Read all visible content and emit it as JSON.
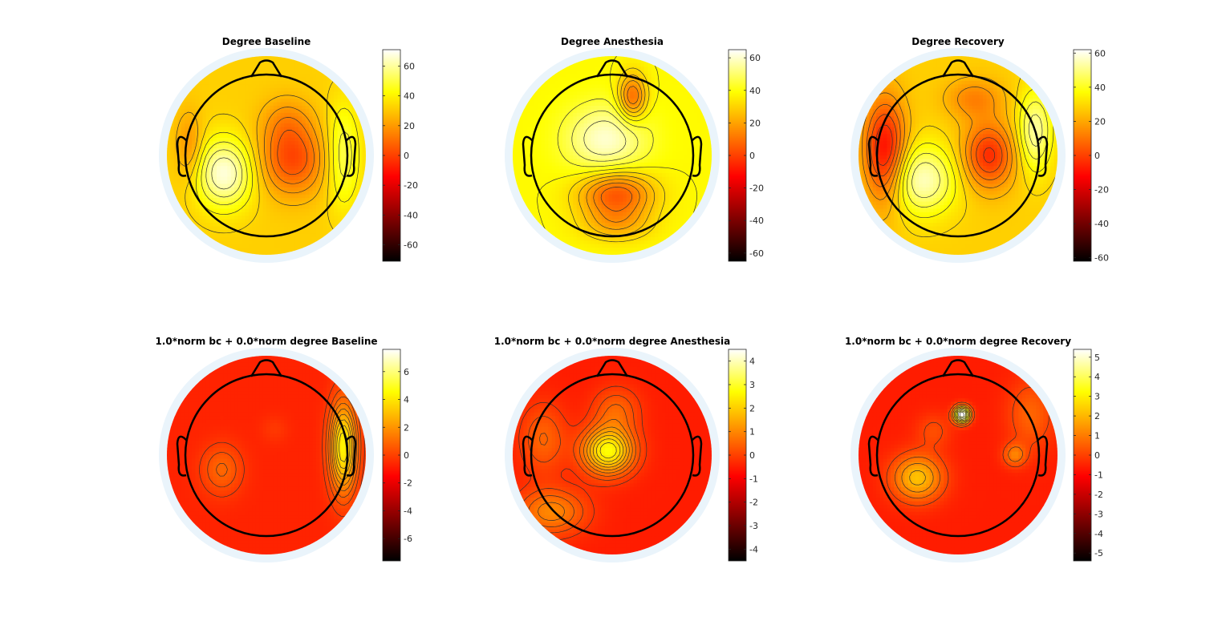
{
  "figure": {
    "colormap": [
      "#000000",
      "#800000",
      "#ff0000",
      "#ff8000",
      "#ffff00",
      "#ffffff"
    ],
    "head_background": "#eaf4fb",
    "outline_color": "#000000",
    "contour_color": "#303030"
  },
  "chart_data": [
    {
      "type": "heatmap",
      "subtype": "topoplot",
      "title": "Degree Baseline",
      "clim": [
        -71,
        71
      ],
      "colorbar_ticks": [
        60,
        40,
        20,
        0,
        -20,
        -40,
        -60
      ],
      "background_value": 32,
      "blobs": [
        {
          "x": -0.52,
          "y": -0.22,
          "sx": 0.25,
          "sy": 0.3,
          "v": 35
        },
        {
          "x": 0.32,
          "y": -0.05,
          "sx": 0.28,
          "sy": 0.3,
          "v": -30
        },
        {
          "x": 0.25,
          "y": 0.42,
          "sx": 0.22,
          "sy": 0.22,
          "v": -12
        },
        {
          "x": 0.95,
          "y": 0.0,
          "sx": 0.15,
          "sy": 0.45,
          "v": 20
        },
        {
          "x": -0.95,
          "y": 0.1,
          "sx": 0.12,
          "sy": 0.3,
          "v": -15
        }
      ]
    },
    {
      "type": "heatmap",
      "subtype": "topoplot",
      "title": "Degree Anesthesia",
      "clim": [
        -65,
        65
      ],
      "colorbar_ticks": [
        60,
        40,
        20,
        0,
        -20,
        -40,
        -60
      ],
      "background_value": 38,
      "blobs": [
        {
          "x": -0.08,
          "y": 0.2,
          "sx": 0.35,
          "sy": 0.3,
          "v": 22
        },
        {
          "x": 0.05,
          "y": -0.48,
          "sx": 0.32,
          "sy": 0.2,
          "v": -34
        },
        {
          "x": 0.25,
          "y": 0.72,
          "sx": 0.12,
          "sy": 0.2,
          "v": -30
        },
        {
          "x": 0.05,
          "y": -0.85,
          "sx": 0.3,
          "sy": 0.15,
          "v": -15
        }
      ]
    },
    {
      "type": "heatmap",
      "subtype": "topoplot",
      "title": "Degree Recovery",
      "clim": [
        -62,
        62
      ],
      "colorbar_ticks": [
        60,
        40,
        20,
        0,
        -20,
        -40,
        -60
      ],
      "background_value": 28,
      "blobs": [
        {
          "x": -0.45,
          "y": -0.3,
          "sx": 0.3,
          "sy": 0.3,
          "v": 28
        },
        {
          "x": 0.38,
          "y": 0.0,
          "sx": 0.22,
          "sy": 0.28,
          "v": -32
        },
        {
          "x": -0.9,
          "y": 0.05,
          "sx": 0.18,
          "sy": 0.45,
          "v": -40
        },
        {
          "x": 0.2,
          "y": 0.7,
          "sx": 0.25,
          "sy": 0.18,
          "v": -15
        },
        {
          "x": 0.95,
          "y": 0.3,
          "sx": 0.15,
          "sy": 0.35,
          "v": 25
        }
      ]
    },
    {
      "type": "heatmap",
      "subtype": "topoplot",
      "title": "1.0*norm bc + 0.0*norm degree Baseline",
      "clim": [
        -7.6,
        7.6
      ],
      "colorbar_ticks": [
        6,
        4,
        2,
        0,
        -2,
        -4,
        -6
      ],
      "background_value": -0.7,
      "blobs": [
        {
          "x": -0.55,
          "y": -0.18,
          "sx": 0.18,
          "sy": 0.22,
          "v": 1.6
        },
        {
          "x": 0.1,
          "y": 0.32,
          "sx": 0.12,
          "sy": 0.12,
          "v": 0.5
        },
        {
          "x": 0.95,
          "y": 0.1,
          "sx": 0.12,
          "sy": 0.4,
          "v": 5.0
        }
      ]
    },
    {
      "type": "heatmap",
      "subtype": "topoplot",
      "title": "1.0*norm bc + 0.0*norm degree Anesthesia",
      "clim": [
        -4.5,
        4.5
      ],
      "colorbar_ticks": [
        4,
        3,
        2,
        1,
        0,
        -1,
        -2,
        -3,
        -4
      ],
      "background_value": -0.5,
      "blobs": [
        {
          "x": -0.05,
          "y": 0.05,
          "sx": 0.22,
          "sy": 0.2,
          "v": 3.2
        },
        {
          "x": 0.05,
          "y": 0.55,
          "sx": 0.2,
          "sy": 0.2,
          "v": 1.0
        },
        {
          "x": -0.75,
          "y": -0.7,
          "sx": 0.3,
          "sy": 0.2,
          "v": 1.5
        },
        {
          "x": -0.85,
          "y": 0.2,
          "sx": 0.2,
          "sy": 0.3,
          "v": 1.0
        }
      ]
    },
    {
      "type": "heatmap",
      "subtype": "topoplot",
      "title": "1.0*norm bc + 0.0*norm degree Recovery",
      "clim": [
        -5.4,
        5.4
      ],
      "colorbar_ticks": [
        5,
        4,
        3,
        2,
        1,
        0,
        -1,
        -2,
        -3,
        -4,
        -5
      ],
      "background_value": -0.6,
      "blobs": [
        {
          "x": 0.05,
          "y": 0.5,
          "sx": 0.07,
          "sy": 0.07,
          "v": 6.5
        },
        {
          "x": -0.5,
          "y": -0.28,
          "sx": 0.22,
          "sy": 0.2,
          "v": 2.8
        },
        {
          "x": 0.7,
          "y": 0.0,
          "sx": 0.1,
          "sy": 0.1,
          "v": 1.6
        },
        {
          "x": -0.3,
          "y": 0.3,
          "sx": 0.15,
          "sy": 0.15,
          "v": 0.8
        },
        {
          "x": 0.9,
          "y": 0.5,
          "sx": 0.2,
          "sy": 0.3,
          "v": 1.2
        }
      ]
    }
  ]
}
